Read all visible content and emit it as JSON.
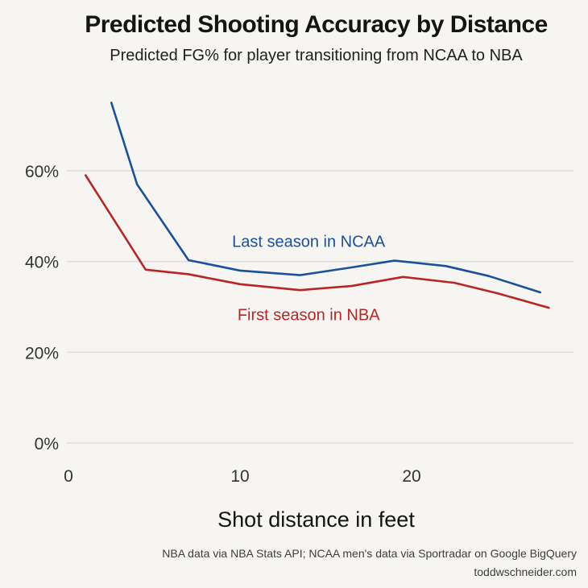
{
  "page": {
    "title": "Predicted Shooting Accuracy by Distance",
    "subtitle": "Predicted FG% for player transitioning from NCAA to NBA",
    "footer_line1": "NBA data via NBA Stats API; NCAA men's data via Sportradar on Google BigQuery",
    "footer_line2": "toddwschneider.com"
  },
  "colors": {
    "background": "#f6f5f2",
    "grid": "#dcdbd8",
    "ncaa_blue": "#1b519c",
    "nba_red": "#b82525",
    "text": "#1a1a1a"
  },
  "chart_data": {
    "type": "line",
    "title": "Predicted Shooting Accuracy by Distance",
    "subtitle": "Predicted FG% for player transitioning from NCAA to NBA",
    "xlabel": "Shot distance in feet",
    "ylabel": "",
    "xlim": [
      0,
      29.5
    ],
    "ylim": [
      0,
      78
    ],
    "x_ticks": [
      0,
      10,
      20
    ],
    "x_tick_labels": [
      "0",
      "10",
      "20"
    ],
    "y_ticks": [
      0,
      20,
      40,
      60
    ],
    "y_tick_labels": [
      "0%",
      "20%",
      "40%",
      "60%"
    ],
    "grid": "horizontal-only",
    "legend": "inline-text-labels",
    "series": [
      {
        "name": "Last season in NCAA",
        "color": "#1b519c",
        "x": [
          2.5,
          4,
          7,
          10,
          13.5,
          16.5,
          19,
          22,
          24.5,
          27.5
        ],
        "y": [
          75,
          57,
          40.3,
          38,
          37,
          38.7,
          40.2,
          39,
          36.8,
          33.2
        ],
        "label": {
          "text": "Last season in NCAA",
          "x": 14,
          "y": 44.5
        }
      },
      {
        "name": "First season in NBA",
        "color": "#b82525",
        "x": [
          1,
          4.5,
          7,
          10,
          13.5,
          16.5,
          19.5,
          22.5,
          25,
          28
        ],
        "y": [
          59,
          38.2,
          37.2,
          35,
          33.7,
          34.6,
          36.6,
          35.3,
          33,
          29.8
        ],
        "label": {
          "text": "First season in NBA",
          "x": 14,
          "y": 28.3
        }
      }
    ]
  }
}
